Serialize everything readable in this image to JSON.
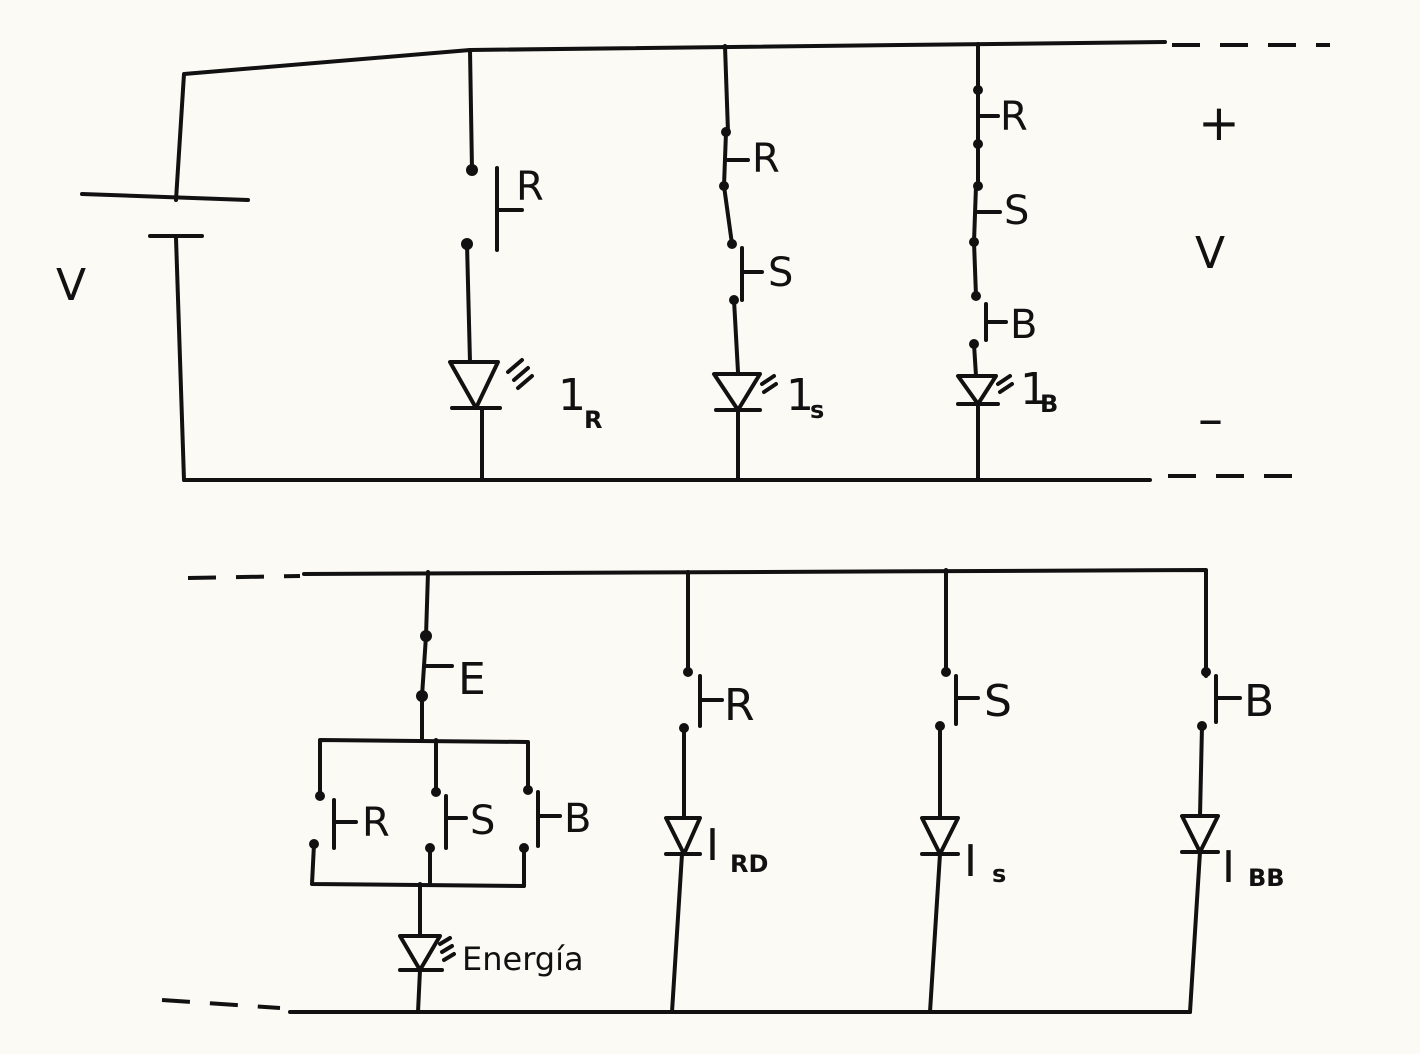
{
  "colors": {
    "ink": "#111111",
    "paper": "#fcfaf4"
  },
  "top_circuit": {
    "source_label": "V",
    "output_label": "V",
    "plus": "+",
    "minus": "–",
    "branch_r": {
      "switch": "R",
      "led_main": "1",
      "led_sub": "R"
    },
    "branch_s": {
      "switch_r": "R",
      "switch_s": "S",
      "led_main": "1",
      "led_sub": "s"
    },
    "branch_b": {
      "switch_r": "R",
      "switch_s": "S",
      "switch_b": "B",
      "led_main": "1",
      "led_sub": "B"
    }
  },
  "bottom_circuit": {
    "energy_branch": {
      "switch_e": "E",
      "switch_r": "R",
      "switch_s": "S",
      "switch_b": "B",
      "led_label": "Energía"
    },
    "branch_r": {
      "switch": "R",
      "led_main": "I",
      "led_sub": "RD"
    },
    "branch_s": {
      "switch": "S",
      "led_main": "I",
      "led_sub": "s"
    },
    "branch_b": {
      "switch": "B",
      "led_main": "I",
      "led_sub": "BB"
    }
  }
}
